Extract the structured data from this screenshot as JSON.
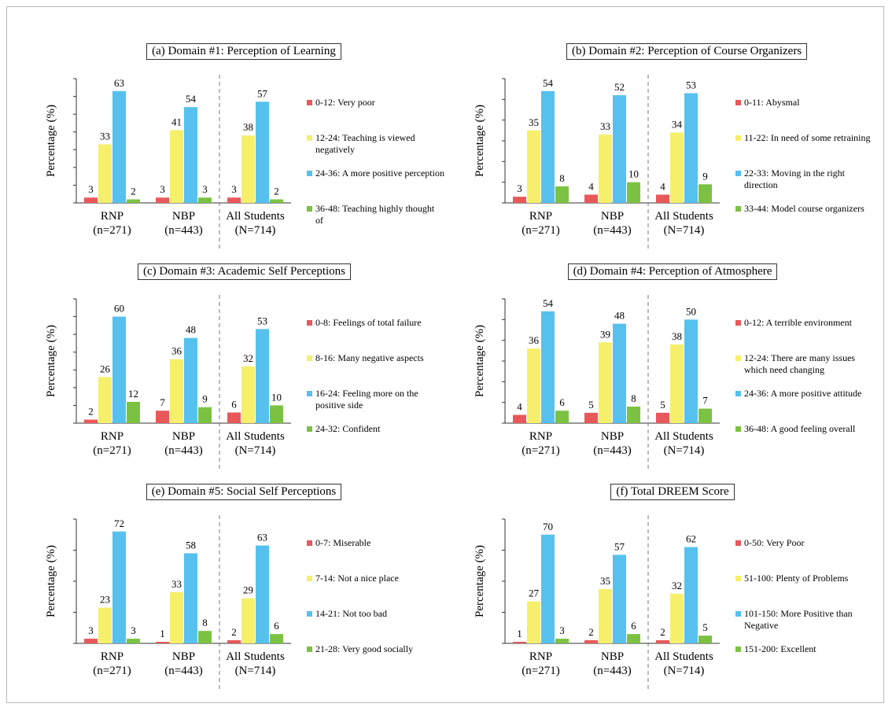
{
  "chart_data": [
    {
      "type": "bar",
      "title": "(a) Domain #1: Perception of Learning",
      "ylabel": "Percentage (%)",
      "categories": [
        "RNP\n(n=271)",
        "NBP\n(n=443)",
        "All Students\n(N=714)"
      ],
      "ylim": [
        0,
        70
      ],
      "yticks": [
        0,
        10,
        20,
        30,
        40,
        50,
        60,
        70
      ],
      "grid": false,
      "series": [
        {
          "name": "0-12: Very poor",
          "color": "#e8585a",
          "values": [
            3,
            3,
            3
          ]
        },
        {
          "name": "12-24: Teaching is viewed negatively",
          "color": "#f5ef6c",
          "values": [
            33,
            41,
            38
          ]
        },
        {
          "name": "24-36: A more positive perception",
          "color": "#56c1ee",
          "values": [
            63,
            54,
            57
          ]
        },
        {
          "name": "36-48: Teaching highly thought of",
          "color": "#7cc242",
          "values": [
            2,
            3,
            2
          ]
        }
      ]
    },
    {
      "type": "bar",
      "title": "(b) Domain #2: Perception of Course Organizers",
      "ylabel": "Percentage (%)",
      "categories": [
        "RNP\n(n=271)",
        "NBP\n(n=443)",
        "All Students\n(N=714)"
      ],
      "ylim": [
        0,
        60
      ],
      "yticks": [
        0,
        10,
        20,
        30,
        40,
        50,
        60
      ],
      "grid": false,
      "series": [
        {
          "name": "0-11: Abysmal",
          "color": "#e8585a",
          "values": [
            3,
            4,
            4
          ]
        },
        {
          "name": "11-22: In need of some retraining",
          "color": "#f5ef6c",
          "values": [
            35,
            33,
            34
          ]
        },
        {
          "name": "22-33: Moving in the right direction",
          "color": "#56c1ee",
          "values": [
            54,
            52,
            53
          ]
        },
        {
          "name": "33-44: Model course organizers",
          "color": "#7cc242",
          "values": [
            8,
            10,
            9
          ]
        }
      ]
    },
    {
      "type": "bar",
      "title": "(c) Domain #3: Academic Self Perceptions",
      "ylabel": "Percentage (%)",
      "categories": [
        "RNP\n(n=271)",
        "NBP\n(n=443)",
        "All Students\n(N=714)"
      ],
      "ylim": [
        0,
        70
      ],
      "yticks": [
        0,
        10,
        20,
        30,
        40,
        50,
        60,
        70
      ],
      "grid": false,
      "series": [
        {
          "name": "0-8: Feelings of total failure",
          "color": "#e8585a",
          "values": [
            2,
            7,
            6
          ]
        },
        {
          "name": "8-16: Many negative aspects",
          "color": "#f5ef6c",
          "values": [
            26,
            36,
            32
          ]
        },
        {
          "name": "16-24: Feeling more on the positive side",
          "color": "#56c1ee",
          "values": [
            60,
            48,
            53
          ]
        },
        {
          "name": "24-32: Confident",
          "color": "#7cc242",
          "values": [
            12,
            9,
            10
          ]
        }
      ]
    },
    {
      "type": "bar",
      "title": "(d) Domain #4: Perception of Atmosphere",
      "ylabel": "Percentage (%)",
      "categories": [
        "RNP\n(n=271)",
        "NBP\n(n=443)",
        "All Students\n(N=714)"
      ],
      "ylim": [
        0,
        60
      ],
      "yticks": [
        0,
        10,
        20,
        30,
        40,
        50,
        60
      ],
      "grid": false,
      "series": [
        {
          "name": "0-12: A terrible environment",
          "color": "#e8585a",
          "values": [
            4,
            5,
            5
          ]
        },
        {
          "name": "12-24: There are many issues which need changing",
          "color": "#f5ef6c",
          "values": [
            36,
            39,
            38
          ]
        },
        {
          "name": "24-36: A more positive attitude",
          "color": "#56c1ee",
          "values": [
            54,
            48,
            50
          ]
        },
        {
          "name": "36-48: A good feeling overall",
          "color": "#7cc242",
          "values": [
            6,
            8,
            7
          ]
        }
      ]
    },
    {
      "type": "bar",
      "title": "(e) Domain #5: Social Self Perceptions",
      "ylabel": "Percentage (%)",
      "categories": [
        "RNP\n(n=271)",
        "NBP\n(n=443)",
        "All Students\n(N=714)"
      ],
      "ylim": [
        0,
        80
      ],
      "yticks": [
        0,
        20,
        40,
        60,
        80
      ],
      "grid": false,
      "series": [
        {
          "name": "0-7: Miserable",
          "color": "#e8585a",
          "values": [
            3,
            1,
            2
          ]
        },
        {
          "name": "7-14: Not a nice place",
          "color": "#f5ef6c",
          "values": [
            23,
            33,
            29
          ]
        },
        {
          "name": "14-21: Not too bad",
          "color": "#56c1ee",
          "values": [
            72,
            58,
            63
          ]
        },
        {
          "name": "21-28: Very good socially",
          "color": "#7cc242",
          "values": [
            3,
            8,
            6
          ]
        }
      ]
    },
    {
      "type": "bar",
      "title": "(f) Total DREEM Score",
      "ylabel": "Percentage (%)",
      "categories": [
        "RNP\n(n=271)",
        "NBP\n(n=443)",
        "All Students\n(N=714)"
      ],
      "ylim": [
        0,
        80
      ],
      "yticks": [
        0,
        20,
        40,
        60,
        80
      ],
      "grid": false,
      "series": [
        {
          "name": "0-50: Very Poor",
          "color": "#e8585a",
          "values": [
            1,
            2,
            2
          ]
        },
        {
          "name": "51-100: Plenty of Problems",
          "color": "#f5ef6c",
          "values": [
            27,
            35,
            32
          ]
        },
        {
          "name": "101-150: More Positive than Negative",
          "color": "#56c1ee",
          "values": [
            70,
            57,
            62
          ]
        },
        {
          "name": "151-200: Excellent",
          "color": "#7cc242",
          "values": [
            3,
            6,
            5
          ]
        }
      ]
    }
  ]
}
